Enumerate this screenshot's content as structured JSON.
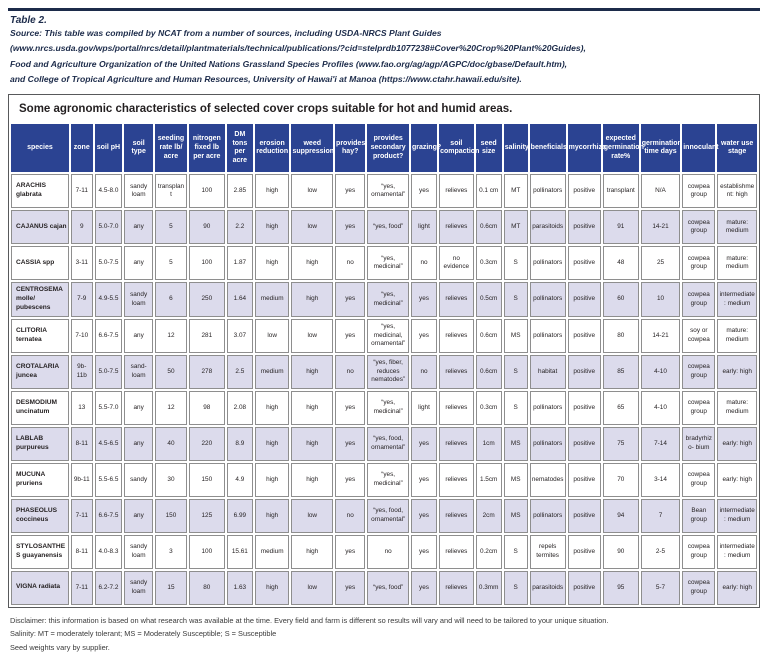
{
  "meta": {
    "table_label": "Table 2.",
    "source_lines": [
      "Source: This table was compiled by NCAT from a number of sources, including USDA-NRCS Plant Guides",
      "(www.nrcs.usda.gov/wps/portal/nrcs/detail/plantmaterials/technical/publications/?cid=stelprdb1077238#Cover%20Crop%20Plant%20Guides),",
      "Food and Agriculture Organization of the United Nations Grassland Species Profiles (www.fao.org/ag/agp/AGPC/doc/gbase/Default.htm),",
      "and College of Tropical Agriculture and Human Resources, University of Hawai'i at Manoa (https://www.ctahr.hawaii.edu/site)."
    ]
  },
  "title": "Some agronomic characteristics of selected cover crops suitable for hot and humid areas.",
  "chart_data": {
    "type": "table",
    "columns": [
      "species",
      "zone",
      "soil pH",
      "soil type",
      "seeding rate lb/ acre",
      "nitrogen fixed lb per acre",
      "DM tons per acre",
      "erosion reduction",
      "weed suppression",
      "provides hay?",
      "provides secondary product?",
      "grazing?",
      "soil compaction",
      "seed size",
      "salinity",
      "beneficials",
      "mycorrhiza",
      "expected germination rate%",
      "germination time days",
      "innoculant",
      "water use stage"
    ],
    "rows": [
      [
        "ARACHIS glabrata",
        "7-11",
        "4.5-8.0",
        "sandy loam",
        "transplant",
        "100",
        "2.85",
        "high",
        "low",
        "yes",
        "“yes, ornamental”",
        "yes",
        "relieves",
        "0.1 cm",
        "MT",
        "pollinators",
        "positive",
        "transplant",
        "N/A",
        "cowpea group",
        "establishment: high"
      ],
      [
        "CAJANUS cajan",
        "9",
        "5.0-7.0",
        "any",
        "5",
        "90",
        "2.2",
        "high",
        "low",
        "yes",
        "“yes, food”",
        "light",
        "relieves",
        "0.6cm",
        "MT",
        "parasitoids",
        "positive",
        "91",
        "14-21",
        "cowpea group",
        "mature: medium"
      ],
      [
        "CASSIA spp",
        "3-11",
        "5.0-7.5",
        "any",
        "5",
        "100",
        "1.87",
        "high",
        "high",
        "no",
        "“yes, medicinal”",
        "no",
        "no evidence",
        "0.3cm",
        "S",
        "pollinators",
        "positive",
        "48",
        "25",
        "cowpea group",
        "mature: medium"
      ],
      [
        "CENTROSEMA molle/ pubescens",
        "7-9",
        "4.9-5.5",
        "sandy loam",
        "6",
        "250",
        "1.64",
        "medium",
        "high",
        "yes",
        "“yes, medicinal”",
        "yes",
        "relieves",
        "0.5cm",
        "S",
        "pollinators",
        "positive",
        "60",
        "10",
        "cowpea group",
        "intermediate: medium"
      ],
      [
        "CLITORIA ternatea",
        "7-10",
        "6.6-7.5",
        "any",
        "12",
        "281",
        "3.07",
        "low",
        "low",
        "yes",
        "“yes, medicinal, ornamental”",
        "yes",
        "relieves",
        "0.6cm",
        "MS",
        "pollinators",
        "positive",
        "80",
        "14-21",
        "soy or cowpea",
        "mature: medium"
      ],
      [
        "CROTALARIA juncea",
        "9b-11b",
        "5.0-7.5",
        "sand- loam",
        "50",
        "278",
        "2.5",
        "medium",
        "high",
        "no",
        "“yes, fiber, reduces nematodes”",
        "no",
        "relieves",
        "0.6cm",
        "S",
        "habitat",
        "positive",
        "85",
        "4-10",
        "cowpea group",
        "early: high"
      ],
      [
        "DESMODIUM uncinatum",
        "13",
        "5.5-7.0",
        "any",
        "12",
        "98",
        "2.08",
        "high",
        "high",
        "yes",
        "“yes, medicinal”",
        "light",
        "relieves",
        "0.3cm",
        "S",
        "pollinators",
        "positive",
        "65",
        "4-10",
        "cowpea group",
        "mature: medium"
      ],
      [
        "LABLAB purpureus",
        "8-11",
        "4.5-6.5",
        "any",
        "40",
        "220",
        "8.9",
        "high",
        "high",
        "yes",
        "“yes, food, ornamental”",
        "yes",
        "relieves",
        "1cm",
        "MS",
        "pollinators",
        "positive",
        "75",
        "7-14",
        "bradyrhizo- bium",
        "early: high"
      ],
      [
        "MUCUNA pruriens",
        "9b-11",
        "5.5-6.5",
        "sandy",
        "30",
        "150",
        "4.9",
        "high",
        "high",
        "yes",
        "“yes, medicinal”",
        "yes",
        "relieves",
        "1.5cm",
        "MS",
        "nematodes",
        "positive",
        "70",
        "3-14",
        "cowpea group",
        "early: high"
      ],
      [
        "PHASEOLUS coccineus",
        "7-11",
        "6.6-7.5",
        "any",
        "150",
        "125",
        "6.99",
        "high",
        "low",
        "no",
        "“yes, food, ornamental”",
        "yes",
        "relieves",
        "2cm",
        "MS",
        "pollinators",
        "positive",
        "94",
        "7",
        "Bean group",
        "intermediate: medium"
      ],
      [
        "STYLOSANTHES guayanensis",
        "8-11",
        "4.0-8.3",
        "sandy loam",
        "3",
        "100",
        "15.61",
        "medium",
        "high",
        "yes",
        "no",
        "yes",
        "relieves",
        "0.2cm",
        "S",
        "repels termites",
        "positive",
        "90",
        "2-5",
        "cowpea group",
        "intermediate: medium"
      ],
      [
        "VIGNA radiata",
        "7-11",
        "6.2-7.2",
        "sandy loam",
        "15",
        "80",
        "1.63",
        "high",
        "low",
        "yes",
        "“yes, food”",
        "yes",
        "relieves",
        "0.3mm",
        "S",
        "parasitoids",
        "positive",
        "95",
        "5-7",
        "cowpea group",
        "early: high"
      ]
    ]
  },
  "footnotes": [
    "Disclaimer: this information is based on what research was available at the time. Every field and farm is different so results will vary and will need to be tailored to your unique situation.",
    "Salinity:  MT = moderately tolerant;   MS = Moderately Susceptible;   S = Susceptible",
    "Seed weights vary by supplier."
  ],
  "colors": {
    "header_bg": "#2b4392",
    "row_alt_bg": "#dcdbec",
    "rule_navy": "#1c2b4a",
    "cell_border": "#8e8e8e"
  }
}
